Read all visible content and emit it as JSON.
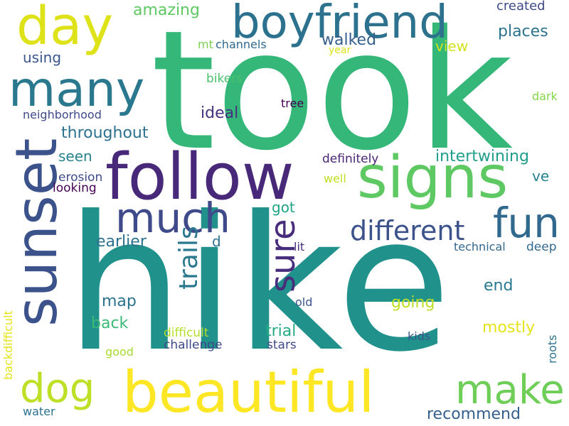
{
  "words": [
    {
      "text": "took",
      "color": "#35b779"
    },
    {
      "text": "hike",
      "color": "#21918c"
    },
    {
      "text": "follow",
      "color": "#482878"
    },
    {
      "text": "signs",
      "color": "#5ec962"
    },
    {
      "text": "sunset",
      "color": "#3b528b"
    },
    {
      "text": "beautiful",
      "color": "#fde725"
    },
    {
      "text": "many",
      "color": "#2a788e"
    },
    {
      "text": "day",
      "color": "#dde318"
    },
    {
      "text": "boyfriend",
      "color": "#2c728e"
    },
    {
      "text": "much",
      "color": "#3e4a89"
    },
    {
      "text": "dog",
      "color": "#bddf26"
    },
    {
      "text": "make",
      "color": "#6ece58"
    },
    {
      "text": "fun",
      "color": "#31688e"
    },
    {
      "text": "sure",
      "color": "#472d7b"
    },
    {
      "text": "different",
      "color": "#3b528b"
    },
    {
      "text": "trails",
      "color": "#2a788e"
    },
    {
      "text": "amazing",
      "color": "#5ec962"
    },
    {
      "text": "created",
      "color": "#3e4a89"
    },
    {
      "text": "places",
      "color": "#2c728e"
    },
    {
      "text": "walked",
      "color": "#355f8d"
    },
    {
      "text": "using",
      "color": "#39568c"
    },
    {
      "text": "mt",
      "color": "#7ad151"
    },
    {
      "text": "channels",
      "color": "#31688e"
    },
    {
      "text": "year",
      "color": "#dde318"
    },
    {
      "text": "view",
      "color": "#d2e21b"
    },
    {
      "text": "bikers",
      "color": "#4ac16d"
    },
    {
      "text": "dark",
      "color": "#86d549"
    },
    {
      "text": "neighborhood",
      "color": "#3e4a89"
    },
    {
      "text": "tree",
      "color": "#440154"
    },
    {
      "text": "ideal",
      "color": "#46327e"
    },
    {
      "text": "throughout",
      "color": "#2c728e"
    },
    {
      "text": "seen",
      "color": "#26828e"
    },
    {
      "text": "intertwining",
      "color": "#1f9e89"
    },
    {
      "text": "ve",
      "color": "#26828e"
    },
    {
      "text": "definitely",
      "color": "#482475"
    },
    {
      "text": "erosion",
      "color": "#3e4a89"
    },
    {
      "text": "well",
      "color": "#c2df23"
    },
    {
      "text": "looking",
      "color": "#440154"
    },
    {
      "text": "got",
      "color": "#20a486"
    },
    {
      "text": "earlier",
      "color": "#2c728e"
    },
    {
      "text": "d",
      "color": "#2c728e"
    },
    {
      "text": "lit",
      "color": "#472d7b"
    },
    {
      "text": "technical",
      "color": "#31688e"
    },
    {
      "text": "deep",
      "color": "#31688e"
    },
    {
      "text": "end",
      "color": "#2a788e"
    },
    {
      "text": "map",
      "color": "#2c728e"
    },
    {
      "text": "going",
      "color": "#bddf26"
    },
    {
      "text": "back",
      "color": "#3aba76"
    },
    {
      "text": "old",
      "color": "#39568c"
    },
    {
      "text": "mostly",
      "color": "#e5e419"
    },
    {
      "text": "backdifficult",
      "color": "#e5e419"
    },
    {
      "text": "difficult",
      "color": "#b5de2b"
    },
    {
      "text": "trial",
      "color": "#25ab82"
    },
    {
      "text": "kids",
      "color": "#39568c"
    },
    {
      "text": "roots",
      "color": "#2c728e"
    },
    {
      "text": "challenge",
      "color": "#3e4a89"
    },
    {
      "text": "stars",
      "color": "#3e4a89"
    },
    {
      "text": "good",
      "color": "#a8db34"
    },
    {
      "text": "water",
      "color": "#2c728e"
    },
    {
      "text": "recommend",
      "color": "#355f8d"
    }
  ]
}
